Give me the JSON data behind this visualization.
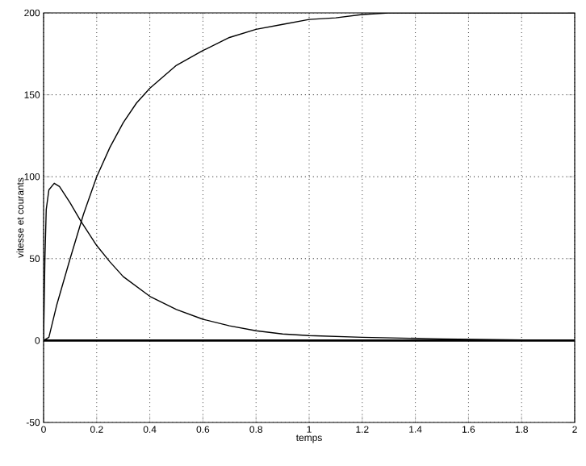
{
  "chart_data": {
    "type": "line",
    "xlabel": "temps",
    "ylabel": "vitesse et courants",
    "xlim": [
      0,
      2
    ],
    "ylim": [
      -50,
      200
    ],
    "xticks": [
      0,
      0.2,
      0.4,
      0.6,
      0.8,
      1,
      1.2,
      1.4,
      1.6,
      1.8,
      2
    ],
    "yticks": [
      -50,
      0,
      50,
      100,
      150,
      200
    ],
    "grid": true,
    "line_style": "solid",
    "marker": "none",
    "series": [
      {
        "color": "#000000",
        "x": [
          0,
          0.02,
          0.05,
          0.1,
          0.15,
          0.2,
          0.25,
          0.3,
          0.35,
          0.4,
          0.5,
          0.6,
          0.7,
          0.8,
          0.9,
          1.0,
          1.1,
          1.2,
          1.3,
          1.4,
          2
        ],
        "values": [
          0,
          2,
          22,
          50,
          77,
          100,
          118,
          133,
          145,
          154,
          168,
          177,
          185,
          190,
          193,
          196,
          197,
          199,
          200,
          200,
          200
        ]
      },
      {
        "color": "#000000",
        "x": [
          0,
          0.005,
          0.01,
          0.02,
          0.04,
          0.06,
          0.1,
          0.14,
          0.2,
          0.25,
          0.3,
          0.4,
          0.5,
          0.6,
          0.7,
          0.8,
          0.9,
          1.0,
          1.2,
          1.5,
          2
        ],
        "values": [
          0,
          50,
          80,
          92,
          96,
          94,
          84,
          73,
          58,
          48,
          39,
          27,
          19,
          13,
          9,
          6,
          4,
          3,
          2,
          1,
          0
        ]
      },
      {
        "color": "#000000",
        "x": [
          0,
          2
        ],
        "values": [
          0,
          0
        ]
      }
    ]
  }
}
